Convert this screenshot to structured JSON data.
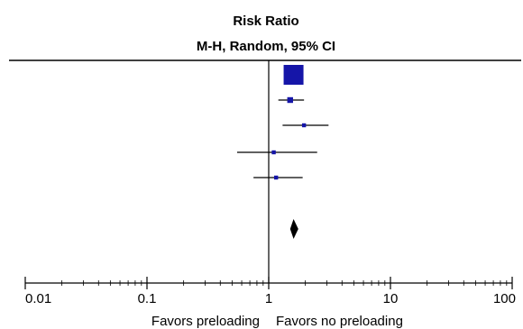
{
  "chart_data": {
    "type": "forest",
    "title": "Risk Ratio",
    "subtitle": "M-H, Random, 95% CI",
    "x_scale": "log",
    "xlim": [
      0.01,
      100
    ],
    "null_value": 1,
    "ticks": [
      {
        "value": 0.01,
        "label": "0.01"
      },
      {
        "value": 0.1,
        "label": "0.1"
      },
      {
        "value": 1,
        "label": "1"
      },
      {
        "value": 10,
        "label": "10"
      },
      {
        "value": 100,
        "label": "100"
      }
    ],
    "favors_left": "Favors preloading",
    "favors_right": "Favors no preloading",
    "studies": [
      {
        "estimate": 1.6,
        "ci": [
          1.6,
          1.6
        ],
        "weight": "large"
      },
      {
        "estimate": 1.5,
        "ci": [
          1.2,
          1.95
        ]
      },
      {
        "estimate": 1.95,
        "ci": [
          1.3,
          3.1
        ]
      },
      {
        "estimate": 1.1,
        "ci": [
          0.55,
          2.5
        ]
      },
      {
        "estimate": 1.15,
        "ci": [
          0.75,
          1.9
        ]
      }
    ],
    "pooled": {
      "estimate": 1.6,
      "ci": [
        1.5,
        1.75
      ]
    },
    "colors": {
      "study": "#1515a8",
      "pooled": "#000000",
      "axis": "#000000"
    }
  }
}
